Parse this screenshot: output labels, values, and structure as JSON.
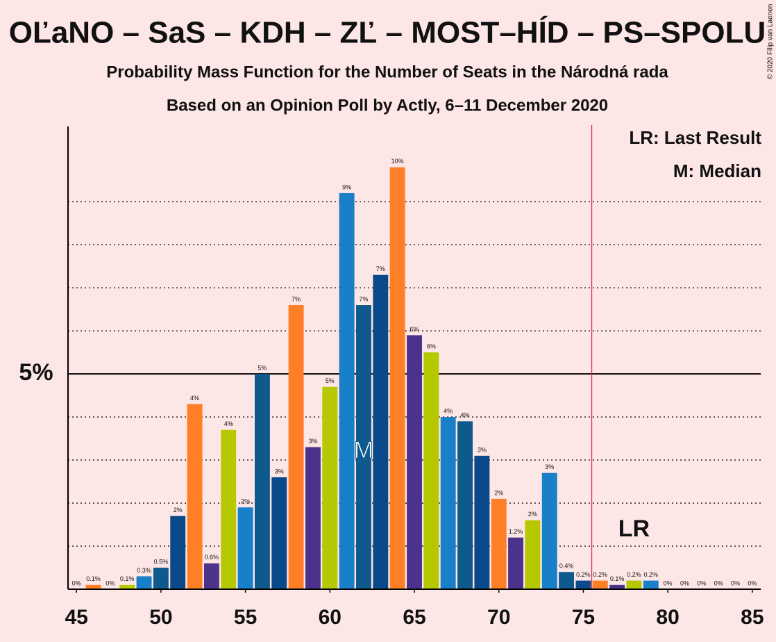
{
  "chart_data": {
    "type": "bar",
    "title": "OĽaNO – SaS – KDH – ZĽ – MOST–HÍD – PS–SPOLU",
    "subtitle": "Probability Mass Function for the Number of Seats in the Národná rada",
    "subtitle2": "Based on an Opinion Poll by Actly, 6–11 December 2020",
    "copyright": "© 2020 Filip van Laenen",
    "legend": [
      "LR: Last Result",
      "M: Median"
    ],
    "last_result": 76,
    "last_result_label": "LR",
    "median": 62,
    "median_label": "M",
    "categories": [
      45,
      46,
      47,
      48,
      49,
      50,
      51,
      52,
      53,
      54,
      55,
      56,
      57,
      58,
      59,
      60,
      61,
      62,
      63,
      64,
      65,
      66,
      67,
      68,
      69,
      70,
      71,
      72,
      73,
      74,
      75,
      76,
      77,
      78,
      79,
      80,
      81,
      82,
      83,
      84,
      85
    ],
    "values": [
      0,
      0.1,
      0,
      0.1,
      0.3,
      0.5,
      1.7,
      4.3,
      0.6,
      3.7,
      1.9,
      5.0,
      2.6,
      6.6,
      3.3,
      4.7,
      9.2,
      6.6,
      7.3,
      9.8,
      5.9,
      5.5,
      4.0,
      3.9,
      3.1,
      2.1,
      1.2,
      1.6,
      2.7,
      0.4,
      0.2,
      0.2,
      0.1,
      0.2,
      0.2,
      0,
      0,
      0,
      0,
      0,
      0
    ],
    "value_labels": [
      "0%",
      "0.1%",
      "0%",
      "0.1%",
      "0.3%",
      "0.5%",
      "2%",
      "4%",
      "0.6%",
      "4%",
      "2%",
      "5%",
      "3%",
      "7%",
      "3%",
      "5%",
      "9%",
      "7%",
      "7%",
      "10%",
      "6%",
      "6%",
      "4%",
      "4%",
      "3%",
      "2%",
      "1.2%",
      "2%",
      "3%",
      "0.4%",
      "0.2%",
      "0.2%",
      "0.1%",
      "0.2%",
      "0.2%",
      "0%",
      "0%",
      "0%",
      "0%",
      "0%",
      "0%"
    ],
    "palette": [
      "#0b4a8a",
      "#ff7f27",
      "#4b338c",
      "#b5c800",
      "#1a7fc9",
      "#0f5a8c"
    ],
    "xlim": [
      44.5,
      85.5
    ],
    "xticks": [
      45,
      50,
      55,
      60,
      65,
      70,
      75,
      80,
      85
    ],
    "ylim": [
      0,
      10.7
    ],
    "yticks": [
      {
        "value": 5,
        "label": "5%"
      }
    ],
    "minor_grid": [
      1,
      2,
      3,
      4,
      6,
      7,
      8,
      9
    ],
    "lr_color": "#e0203a"
  }
}
